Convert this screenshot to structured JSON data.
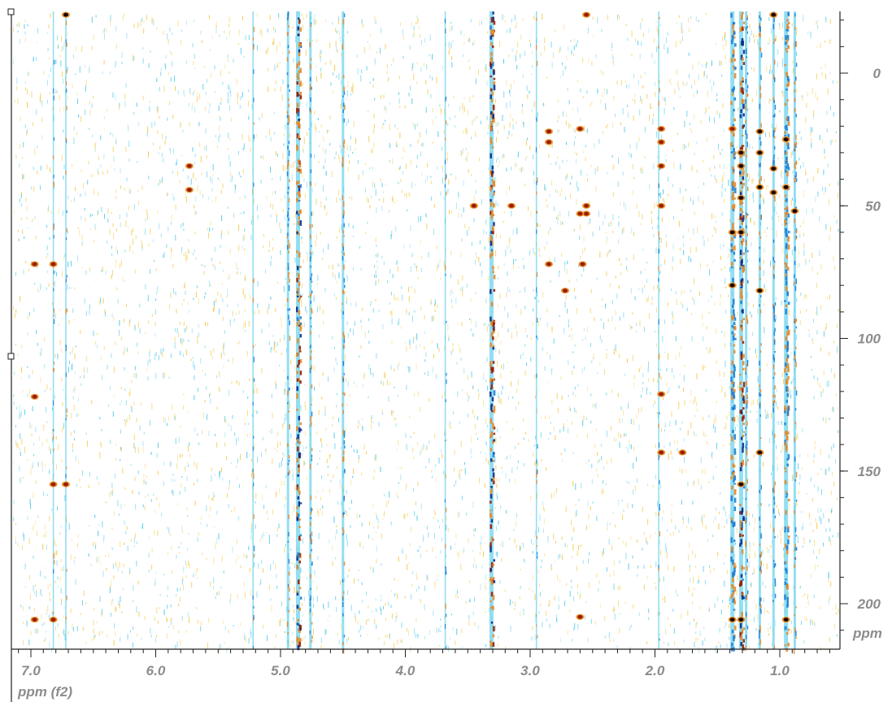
{
  "chart_data": {
    "type": "heatmap",
    "subtype": "2D NMR contour plot",
    "xlabel": "ppm (f2)",
    "ylabel": "ppm",
    "x_axis_reversed": true,
    "y_axis_reversed": true,
    "xlim": [
      7.2,
      0.55
    ],
    "ylim": [
      -22,
      215
    ],
    "x_ticks": [
      {
        "value": 7.0,
        "label": "7.0"
      },
      {
        "value": 6.0,
        "label": "6.0"
      },
      {
        "value": 5.0,
        "label": "5.0"
      },
      {
        "value": 4.0,
        "label": "4.0"
      },
      {
        "value": 3.0,
        "label": "3.0"
      },
      {
        "value": 2.0,
        "label": "2.0"
      },
      {
        "value": 1.0,
        "label": "1.0"
      }
    ],
    "y_ticks": [
      {
        "value": 0,
        "label": "0"
      },
      {
        "value": 50,
        "label": "50"
      },
      {
        "value": 100,
        "label": "100"
      },
      {
        "value": 150,
        "label": "150"
      },
      {
        "value": 200,
        "label": "200"
      }
    ],
    "colors": {
      "positive_low": "#f2c230",
      "positive_high": "#9a1c00",
      "negative_low": "#38c2e8",
      "negative_high": "#0a2c8c",
      "tick_label": "#8c8c8c"
    },
    "vertical_streaks": [
      {
        "x": 4.86,
        "intensity": "strong",
        "dark": true
      },
      {
        "x": 3.31,
        "intensity": "strong",
        "dark": true
      },
      {
        "x": 4.94,
        "intensity": "medium"
      },
      {
        "x": 4.76,
        "intensity": "medium"
      },
      {
        "x": 4.5,
        "intensity": "medium"
      },
      {
        "x": 5.22,
        "intensity": "weak"
      },
      {
        "x": 1.38,
        "intensity": "strong"
      },
      {
        "x": 1.31,
        "intensity": "strong",
        "dark": true
      },
      {
        "x": 1.27,
        "intensity": "medium"
      },
      {
        "x": 1.16,
        "intensity": "medium"
      },
      {
        "x": 1.05,
        "intensity": "medium"
      },
      {
        "x": 0.95,
        "intensity": "strong"
      },
      {
        "x": 0.88,
        "intensity": "medium"
      },
      {
        "x": 6.82,
        "intensity": "weak"
      },
      {
        "x": 6.72,
        "intensity": "weak"
      },
      {
        "x": 3.68,
        "intensity": "weak"
      },
      {
        "x": 2.95,
        "intensity": "weak"
      },
      {
        "x": 1.97,
        "intensity": "weak"
      }
    ],
    "cross_peaks": [
      {
        "x": 6.82,
        "y": 155,
        "sign": "pos"
      },
      {
        "x": 6.72,
        "y": 155,
        "sign": "pos"
      },
      {
        "x": 6.97,
        "y": 122,
        "sign": "pos"
      },
      {
        "x": 6.97,
        "y": 72,
        "sign": "pos"
      },
      {
        "x": 6.82,
        "y": 72,
        "sign": "pos"
      },
      {
        "x": 6.97,
        "y": 206,
        "sign": "pos"
      },
      {
        "x": 6.82,
        "y": 206,
        "sign": "pos"
      },
      {
        "x": 5.73,
        "y": 35,
        "sign": "pos"
      },
      {
        "x": 5.73,
        "y": 44,
        "sign": "pos"
      },
      {
        "x": 3.45,
        "y": 50,
        "sign": "pos"
      },
      {
        "x": 3.15,
        "y": 50,
        "sign": "pos"
      },
      {
        "x": 2.85,
        "y": 22,
        "sign": "pos"
      },
      {
        "x": 2.85,
        "y": 26,
        "sign": "pos"
      },
      {
        "x": 2.6,
        "y": 21,
        "sign": "pos"
      },
      {
        "x": 2.55,
        "y": 50,
        "sign": "pos"
      },
      {
        "x": 2.55,
        "y": 53,
        "sign": "pos"
      },
      {
        "x": 2.6,
        "y": 53,
        "sign": "pos"
      },
      {
        "x": 2.58,
        "y": 72,
        "sign": "pos"
      },
      {
        "x": 2.85,
        "y": 72,
        "sign": "pos"
      },
      {
        "x": 2.72,
        "y": 82,
        "sign": "pos"
      },
      {
        "x": 1.95,
        "y": 21,
        "sign": "pos"
      },
      {
        "x": 1.95,
        "y": 26,
        "sign": "pos"
      },
      {
        "x": 1.95,
        "y": 35,
        "sign": "pos"
      },
      {
        "x": 1.95,
        "y": 50,
        "sign": "pos"
      },
      {
        "x": 1.95,
        "y": 121,
        "sign": "pos"
      },
      {
        "x": 1.95,
        "y": 143,
        "sign": "pos"
      },
      {
        "x": 1.78,
        "y": 143,
        "sign": "pos"
      },
      {
        "x": 1.38,
        "y": 21,
        "sign": "pos"
      },
      {
        "x": 1.31,
        "y": 30,
        "sign": "pos",
        "dark": true
      },
      {
        "x": 1.31,
        "y": 35,
        "sign": "pos",
        "dark": true
      },
      {
        "x": 1.31,
        "y": 47,
        "sign": "pos",
        "dark": true
      },
      {
        "x": 1.31,
        "y": 60,
        "sign": "pos",
        "dark": true
      },
      {
        "x": 1.16,
        "y": 22,
        "sign": "pos",
        "dark": true
      },
      {
        "x": 1.16,
        "y": 30,
        "sign": "pos",
        "dark": true
      },
      {
        "x": 1.16,
        "y": 43,
        "sign": "pos",
        "dark": true
      },
      {
        "x": 1.16,
        "y": 82,
        "sign": "pos",
        "dark": true
      },
      {
        "x": 1.16,
        "y": 143,
        "sign": "pos",
        "dark": true
      },
      {
        "x": 1.05,
        "y": -22,
        "sign": "pos",
        "dark": true
      },
      {
        "x": 1.05,
        "y": 36,
        "sign": "pos",
        "dark": true
      },
      {
        "x": 1.05,
        "y": 45,
        "sign": "pos",
        "dark": true
      },
      {
        "x": 0.95,
        "y": 25,
        "sign": "pos",
        "dark": true
      },
      {
        "x": 0.95,
        "y": 43,
        "sign": "pos",
        "dark": true
      },
      {
        "x": 0.88,
        "y": 52,
        "sign": "pos",
        "dark": true
      },
      {
        "x": 1.38,
        "y": 60,
        "sign": "pos",
        "dark": true
      },
      {
        "x": 1.38,
        "y": 80,
        "sign": "pos",
        "dark": true
      },
      {
        "x": 1.38,
        "y": 206,
        "sign": "pos",
        "dark": true
      },
      {
        "x": 1.31,
        "y": 155,
        "sign": "pos",
        "dark": true
      },
      {
        "x": 1.31,
        "y": 206,
        "sign": "pos",
        "dark": true
      },
      {
        "x": 0.95,
        "y": 206,
        "sign": "pos",
        "dark": true
      },
      {
        "x": 6.72,
        "y": -22,
        "sign": "pos",
        "dark": true
      },
      {
        "x": 2.55,
        "y": -22,
        "sign": "pos"
      },
      {
        "x": 2.6,
        "y": 205,
        "sign": "pos"
      }
    ]
  }
}
